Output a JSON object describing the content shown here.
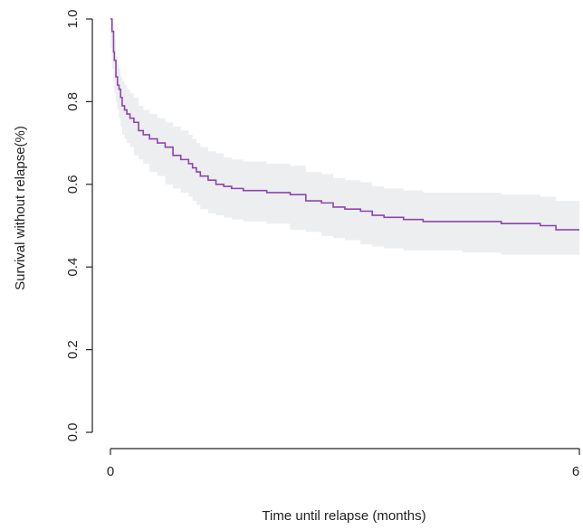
{
  "chart_data": {
    "type": "line",
    "xlabel": "Time until relapse (months)",
    "ylabel": "Survival without relapse(%)",
    "xlim": [
      0,
      6
    ],
    "ylim": [
      0,
      1
    ],
    "x_ticks": [
      0,
      6
    ],
    "x_tick_labels": [
      "0",
      "6"
    ],
    "y_ticks": [
      0.0,
      0.2,
      0.4,
      0.6,
      0.8,
      1.0
    ],
    "y_tick_labels": [
      "0.0",
      "0.2",
      "0.4",
      "0.6",
      "0.8",
      "1.0"
    ],
    "grid": false,
    "colors": {
      "line": "#8e44ad",
      "band": "#eceef0"
    },
    "series": [
      {
        "step": true,
        "x": [
          0,
          0.02,
          0.04,
          0.05,
          0.07,
          0.09,
          0.11,
          0.13,
          0.15,
          0.18,
          0.21,
          0.25,
          0.3,
          0.36,
          0.42,
          0.5,
          0.6,
          0.7,
          0.8,
          0.9,
          1.0,
          1.05,
          1.1,
          1.15,
          1.25,
          1.35,
          1.45,
          1.55,
          1.7,
          2.0,
          2.3,
          2.5,
          2.7,
          2.85,
          3.0,
          3.2,
          3.35,
          3.5,
          3.75,
          4.0,
          4.5,
          5.0,
          5.5,
          5.7,
          6.0
        ],
        "y": [
          1.0,
          0.97,
          0.92,
          0.9,
          0.86,
          0.84,
          0.83,
          0.81,
          0.79,
          0.78,
          0.77,
          0.76,
          0.75,
          0.73,
          0.72,
          0.71,
          0.7,
          0.69,
          0.67,
          0.66,
          0.65,
          0.64,
          0.63,
          0.62,
          0.61,
          0.6,
          0.595,
          0.59,
          0.585,
          0.58,
          0.575,
          0.56,
          0.555,
          0.545,
          0.54,
          0.535,
          0.525,
          0.52,
          0.515,
          0.51,
          0.51,
          0.505,
          0.5,
          0.49,
          0.49
        ],
        "lower": [
          1.0,
          0.93,
          0.88,
          0.85,
          0.82,
          0.8,
          0.78,
          0.76,
          0.74,
          0.72,
          0.71,
          0.7,
          0.69,
          0.67,
          0.66,
          0.65,
          0.63,
          0.62,
          0.6,
          0.59,
          0.58,
          0.57,
          0.56,
          0.55,
          0.54,
          0.53,
          0.525,
          0.52,
          0.515,
          0.51,
          0.505,
          0.49,
          0.485,
          0.475,
          0.47,
          0.465,
          0.455,
          0.45,
          0.445,
          0.44,
          0.44,
          0.435,
          0.43,
          0.43,
          0.43
        ],
        "upper": [
          1.0,
          1.0,
          0.97,
          0.95,
          0.91,
          0.89,
          0.88,
          0.86,
          0.85,
          0.84,
          0.83,
          0.82,
          0.81,
          0.79,
          0.78,
          0.77,
          0.76,
          0.75,
          0.74,
          0.73,
          0.72,
          0.71,
          0.7,
          0.69,
          0.68,
          0.675,
          0.665,
          0.66,
          0.655,
          0.65,
          0.645,
          0.63,
          0.625,
          0.615,
          0.61,
          0.605,
          0.595,
          0.59,
          0.585,
          0.58,
          0.58,
          0.575,
          0.57,
          0.56,
          0.56
        ]
      }
    ]
  }
}
